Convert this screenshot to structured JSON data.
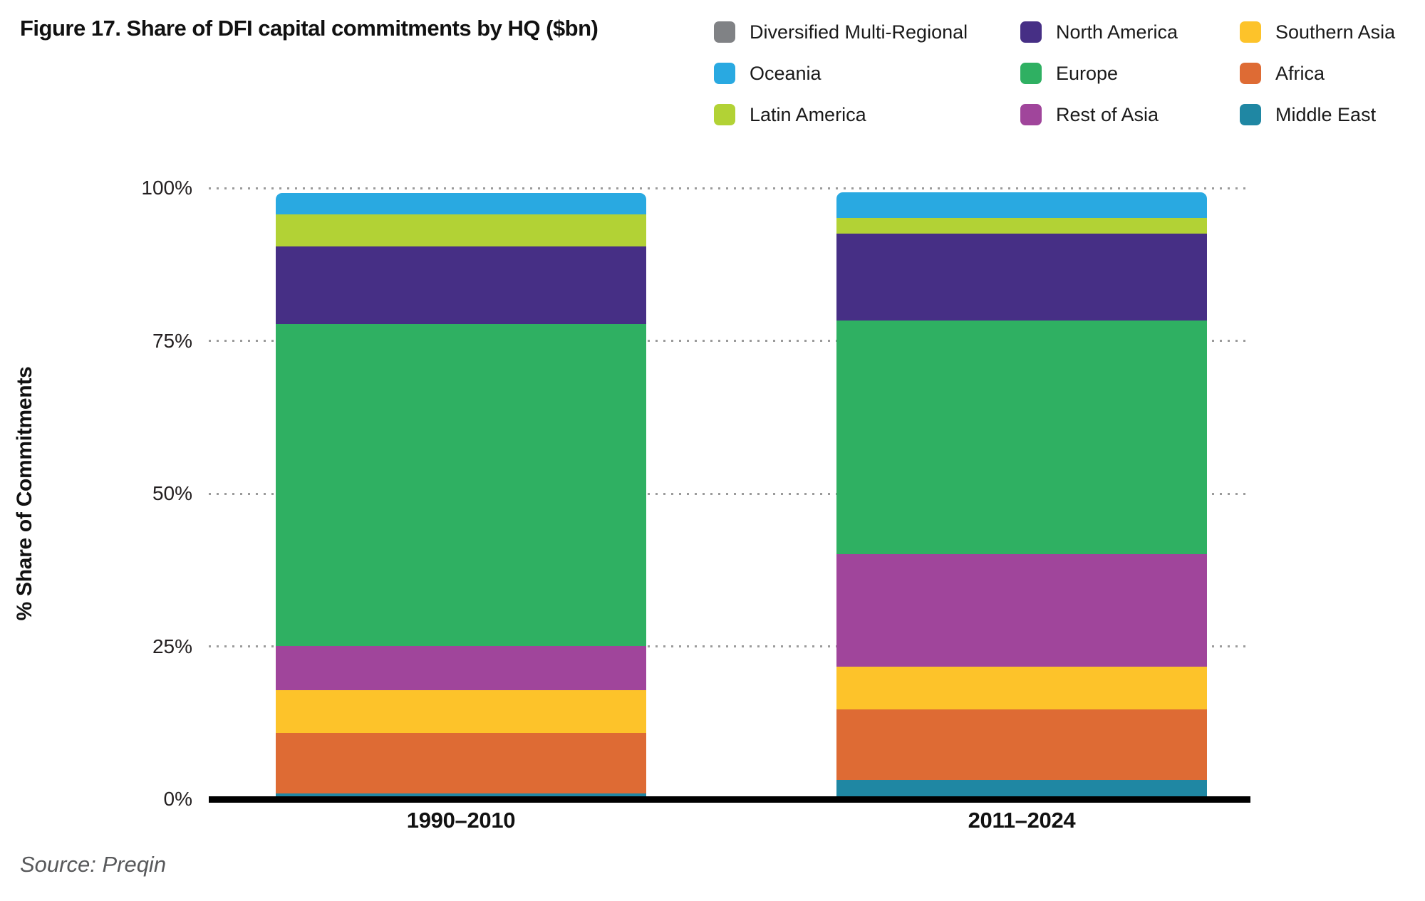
{
  "title": "Figure 17. Share of DFI capital commitments by HQ ($bn)",
  "source_note": "Source: Preqin",
  "colors": {
    "axis_line": "#000000",
    "gridline": "#9b9b9b",
    "text": "#1a1a1a",
    "source_text": "#58595b"
  },
  "legend": {
    "columns": [
      [
        "Diversified Multi-Regional",
        "Oceania",
        "Latin America"
      ],
      [
        "North America",
        "Europe",
        "Rest of Asia"
      ],
      [
        "Southern Asia",
        "Africa",
        "Middle East"
      ]
    ]
  },
  "chart_data": {
    "type": "bar",
    "stacked": true,
    "title": "Figure 17. Share of DFI capital commitments by HQ ($bn)",
    "xlabel": "",
    "ylabel": "% Share of Commitments",
    "ylim": [
      0,
      100
    ],
    "yticks": [
      "0%",
      "25%",
      "50%",
      "75%",
      "100%"
    ],
    "grid": "dotted-horizontal",
    "legend_position": "top-right",
    "categories": [
      "1990–2010",
      "2011–2024"
    ],
    "unit": "% of commitments",
    "series": [
      {
        "name": "Middle East",
        "color": "#1f87a3",
        "values": [
          0.9,
          3.1
        ]
      },
      {
        "name": "Africa",
        "color": "#de6b34",
        "values": [
          9.9,
          11.6
        ]
      },
      {
        "name": "Southern Asia",
        "color": "#fdc32a",
        "values": [
          7.0,
          7.0
        ]
      },
      {
        "name": "Rest of Asia",
        "color": "#a0459b",
        "values": [
          7.3,
          18.4
        ]
      },
      {
        "name": "Europe",
        "color": "#2fb062",
        "values": [
          52.6,
          38.2
        ]
      },
      {
        "name": "North America",
        "color": "#462f85",
        "values": [
          12.7,
          14.2
        ]
      },
      {
        "name": "Latin America",
        "color": "#b2d235",
        "values": [
          5.3,
          2.6
        ]
      },
      {
        "name": "Oceania",
        "color": "#29a9e1",
        "values": [
          3.5,
          4.2
        ]
      },
      {
        "name": "Diversified Multi-Regional",
        "color": "#808285",
        "values": [
          0,
          0
        ]
      }
    ]
  }
}
